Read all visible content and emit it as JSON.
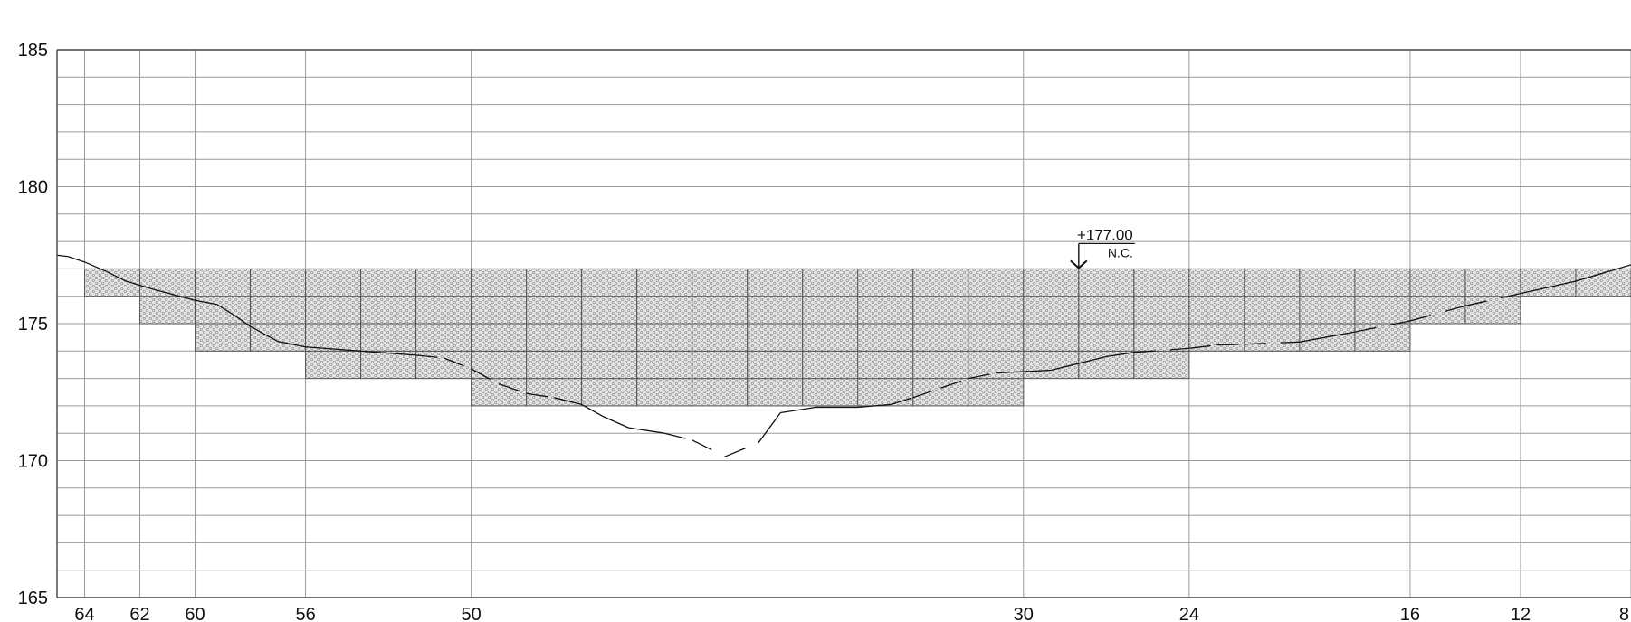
{
  "y_axis": {
    "min": 165,
    "max": 185,
    "minor_step": 1,
    "labels": [
      "185",
      "180",
      "175",
      "170",
      "165"
    ]
  },
  "x_axis": {
    "labels": [
      "64",
      "62",
      "60",
      "56",
      "50",
      "30",
      "24",
      "16",
      "12",
      "8"
    ],
    "range_left": 65,
    "range_right": 8
  },
  "annotation": {
    "elevation": "+177.00",
    "code": "N.C.",
    "station": 28,
    "level": 177
  },
  "blocks": {
    "columns": [
      {
        "x0": 64,
        "x1": 62,
        "bottom": 176
      },
      {
        "x0": 62,
        "x1": 60,
        "bottom": 175
      },
      {
        "x0": 60,
        "x1": 58,
        "bottom": 174
      },
      {
        "x0": 58,
        "x1": 56,
        "bottom": 174
      },
      {
        "x0": 56,
        "x1": 54,
        "bottom": 173
      },
      {
        "x0": 54,
        "x1": 52,
        "bottom": 173
      },
      {
        "x0": 52,
        "x1": 50,
        "bottom": 173
      },
      {
        "x0": 50,
        "x1": 48,
        "bottom": 172
      },
      {
        "x0": 48,
        "x1": 46,
        "bottom": 172
      },
      {
        "x0": 46,
        "x1": 44,
        "bottom": 172
      },
      {
        "x0": 44,
        "x1": 42,
        "bottom": 172
      },
      {
        "x0": 42,
        "x1": 40,
        "bottom": 172
      },
      {
        "x0": 40,
        "x1": 38,
        "bottom": 172
      },
      {
        "x0": 38,
        "x1": 36,
        "bottom": 172
      },
      {
        "x0": 36,
        "x1": 34,
        "bottom": 172
      },
      {
        "x0": 34,
        "x1": 32,
        "bottom": 172
      },
      {
        "x0": 32,
        "x1": 30,
        "bottom": 172
      },
      {
        "x0": 30,
        "x1": 28,
        "bottom": 173
      },
      {
        "x0": 28,
        "x1": 26,
        "bottom": 173
      },
      {
        "x0": 26,
        "x1": 24,
        "bottom": 173
      },
      {
        "x0": 24,
        "x1": 22,
        "bottom": 174
      },
      {
        "x0": 22,
        "x1": 20,
        "bottom": 174
      },
      {
        "x0": 20,
        "x1": 18,
        "bottom": 174
      },
      {
        "x0": 18,
        "x1": 16,
        "bottom": 174
      },
      {
        "x0": 16,
        "x1": 14,
        "bottom": 175
      },
      {
        "x0": 14,
        "x1": 12,
        "bottom": 175
      },
      {
        "x0": 12,
        "x1": 10,
        "bottom": 176
      },
      {
        "x0": 10,
        "x1": 8,
        "bottom": 176
      }
    ],
    "top": 177
  },
  "ground_profile": {
    "points": [
      [
        65,
        177.5
      ],
      [
        64.6,
        177.45
      ],
      [
        64,
        177.25
      ],
      [
        63.2,
        176.9
      ],
      [
        62.5,
        176.55
      ],
      [
        61.5,
        176.25
      ],
      [
        60,
        175.85
      ],
      [
        59.2,
        175.7
      ],
      [
        58.5,
        175.25
      ],
      [
        58,
        174.9
      ],
      [
        57,
        174.35
      ],
      [
        56,
        174.15
      ],
      [
        54,
        174.0
      ],
      [
        52,
        173.85
      ],
      [
        51,
        173.75
      ],
      [
        50,
        173.35
      ],
      [
        49,
        172.8
      ],
      [
        48,
        172.45
      ],
      [
        47,
        172.3
      ],
      [
        46,
        172.05
      ],
      [
        45.2,
        171.6
      ],
      [
        44.3,
        171.2
      ],
      [
        43,
        171.0
      ],
      [
        42,
        170.75
      ],
      [
        40.8,
        170.15
      ],
      [
        39.6,
        170.65
      ],
      [
        38.8,
        171.75
      ],
      [
        37.5,
        171.95
      ],
      [
        36,
        171.95
      ],
      [
        34.8,
        172.05
      ],
      [
        34,
        172.3
      ],
      [
        33,
        172.65
      ],
      [
        32,
        173.0
      ],
      [
        31,
        173.2
      ],
      [
        30,
        173.25
      ],
      [
        29,
        173.3
      ],
      [
        28,
        173.55
      ],
      [
        27,
        173.8
      ],
      [
        26,
        173.95
      ],
      [
        24,
        174.1
      ],
      [
        23,
        174.22
      ],
      [
        22,
        174.25
      ],
      [
        20,
        174.33
      ],
      [
        18,
        174.7
      ],
      [
        16,
        175.1
      ],
      [
        14,
        175.65
      ],
      [
        12,
        176.1
      ],
      [
        10,
        176.55
      ],
      [
        8,
        177.15
      ]
    ],
    "dashed_between": [
      [
        58.5,
        57.8
      ],
      [
        51.5,
        47.5
      ],
      [
        43.5,
        39.6
      ],
      [
        34.5,
        31.5
      ],
      [
        25,
        19.5
      ],
      [
        17,
        13
      ]
    ]
  },
  "colors": {
    "grid": "#9a9a9a",
    "frame": "#444444",
    "block_fill": "#dcdcdc",
    "block_pattern": "#7a7a7a",
    "block_stroke": "#555555",
    "profile": "#111111"
  }
}
